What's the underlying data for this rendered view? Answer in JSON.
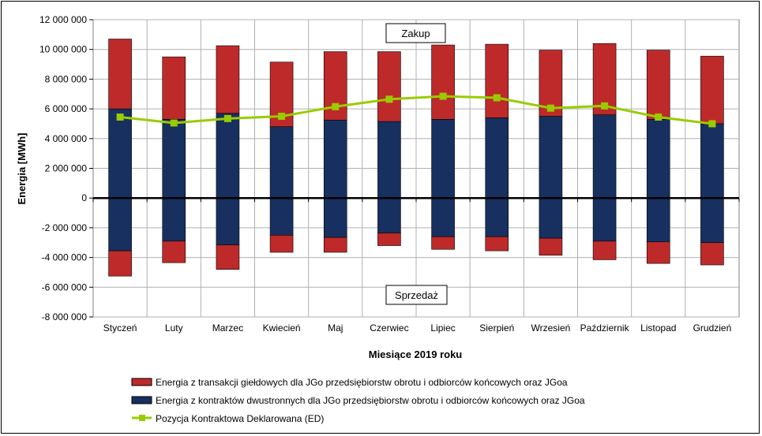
{
  "chart_data": {
    "type": "bar",
    "stacked": true,
    "xlabel": "Miesiące 2019  roku",
    "ylabel": "Energia  [MWh]",
    "ylim": [
      -8000000,
      12000000
    ],
    "ytick_step": 2000000,
    "grid": true,
    "legend_position": "bottom",
    "categories": [
      "Styczeń",
      "Luty",
      "Marzec",
      "Kwiecień",
      "Maj",
      "Czerwiec",
      "Lipiec",
      "Sierpień",
      "Wrzesień",
      "Październik",
      "Listopad",
      "Grudzień"
    ],
    "series": [
      {
        "name": "Energia z kontraktów dwustronnych dla JGo przedsiębiorstw obrotu i odbiorców końcowych oraz JGoa",
        "kind": "bar",
        "color": "#17305f",
        "values": [
          6000000,
          5300000,
          5700000,
          4800000,
          5250000,
          5150000,
          5300000,
          5400000,
          5500000,
          5600000,
          5300000,
          5000000
        ],
        "negative_values": [
          -3550000,
          -2900000,
          -3150000,
          -2500000,
          -2650000,
          -2350000,
          -2600000,
          -2600000,
          -2700000,
          -2900000,
          -2950000,
          -3000000
        ]
      },
      {
        "name": "Energia z transakcji giełdowych dla JGo przedsiębiorstw obrotu i odbiorców końcowych oraz JGoa",
        "kind": "bar",
        "color": "#be2a2a",
        "values": [
          4700000,
          4200000,
          4550000,
          4350000,
          4600000,
          4700000,
          5000000,
          4950000,
          4450000,
          4800000,
          4650000,
          4550000
        ],
        "negative_values": [
          -1700000,
          -1450000,
          -1650000,
          -1150000,
          -1000000,
          -850000,
          -850000,
          -950000,
          -1150000,
          -1250000,
          -1450000,
          -1500000
        ]
      },
      {
        "name": "Pozycja Kontraktowa Deklarowana (ED)",
        "kind": "line",
        "color": "#99cc00",
        "values": [
          5450000,
          5050000,
          5350000,
          5500000,
          6150000,
          6650000,
          6850000,
          6750000,
          6050000,
          6200000,
          5450000,
          5000000
        ]
      }
    ],
    "annotations": {
      "top": "Zakup",
      "bottom": "Sprzedaż"
    }
  }
}
